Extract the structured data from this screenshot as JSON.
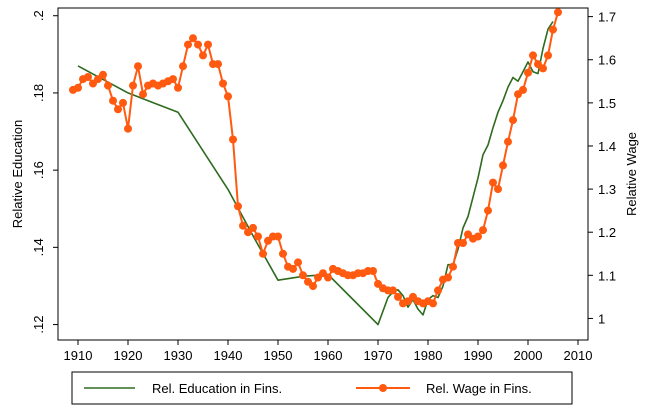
{
  "chart_data": {
    "type": "line",
    "title": "",
    "xlabel": "",
    "y_left_label": "Relative Education",
    "y_right_label": "Relative Wage",
    "xlim": [
      1906,
      2012
    ],
    "ylim_left": [
      0.116,
      0.202
    ],
    "ylim_right": [
      0.95,
      1.72
    ],
    "x_ticks": [
      1910,
      1920,
      1930,
      1940,
      1950,
      1960,
      1970,
      1980,
      1990,
      2000,
      2010
    ],
    "x_tick_labels": [
      "1910",
      "1920",
      "1930",
      "1940",
      "1950",
      "1960",
      "1970",
      "1980",
      "1990",
      "2000",
      "2010"
    ],
    "y_left_ticks": [
      0.12,
      0.14,
      0.16,
      0.18,
      0.2
    ],
    "y_left_tick_labels": [
      ".12",
      ".14",
      ".16",
      ".18",
      ".2"
    ],
    "y_right_ticks": [
      1,
      1.1,
      1.2,
      1.3,
      1.4,
      1.5,
      1.6,
      1.7
    ],
    "y_right_tick_labels": [
      "1",
      "1.1",
      "1.2",
      "1.3",
      "1.4",
      "1.5",
      "1.6",
      "1.7"
    ],
    "grid": false,
    "legend_position": "bottom",
    "series": [
      {
        "name": "Rel. Education in Fins.",
        "axis": "left",
        "color": "#2e6b1f",
        "marker": "none",
        "x": [
          1910,
          1915,
          1920,
          1925,
          1930,
          1935,
          1940,
          1945,
          1950,
          1955,
          1960,
          1965,
          1970,
          1972,
          1973,
          1974,
          1975,
          1976,
          1977,
          1978,
          1979,
          1980,
          1981,
          1982,
          1983,
          1984,
          1985,
          1986,
          1987,
          1988,
          1989,
          1990,
          1991,
          1992,
          1993,
          1994,
          1995,
          1996,
          1997,
          1998,
          1999,
          2000,
          2001,
          2002,
          2003,
          2004,
          2005
        ],
        "y": [
          0.187,
          0.1835,
          0.18,
          0.1775,
          0.175,
          0.165,
          0.155,
          0.143,
          0.1315,
          0.1325,
          0.133,
          0.1265,
          0.12,
          0.127,
          0.1285,
          0.129,
          0.1275,
          0.1245,
          0.1265,
          0.124,
          0.1225,
          0.1265,
          0.1275,
          0.127,
          0.13,
          0.1355,
          0.1355,
          0.1395,
          0.145,
          0.148,
          0.153,
          0.158,
          0.164,
          0.1665,
          0.171,
          0.175,
          0.178,
          0.1815,
          0.184,
          0.183,
          0.1855,
          0.188,
          0.1855,
          0.185,
          0.1915,
          0.1965,
          0.1985
        ]
      },
      {
        "name": "Rel. Wage in Fins.",
        "axis": "right",
        "color": "#ff5a10",
        "marker": "circle",
        "x": [
          1909,
          1910,
          1911,
          1912,
          1913,
          1914,
          1915,
          1916,
          1917,
          1918,
          1919,
          1920,
          1921,
          1922,
          1923,
          1924,
          1925,
          1926,
          1927,
          1928,
          1929,
          1930,
          1931,
          1932,
          1933,
          1934,
          1935,
          1936,
          1937,
          1938,
          1939,
          1940,
          1941,
          1942,
          1943,
          1944,
          1945,
          1946,
          1947,
          1948,
          1949,
          1950,
          1951,
          1952,
          1953,
          1954,
          1955,
          1956,
          1957,
          1958,
          1959,
          1960,
          1961,
          1962,
          1963,
          1964,
          1965,
          1966,
          1967,
          1968,
          1969,
          1970,
          1971,
          1972,
          1973,
          1974,
          1975,
          1976,
          1977,
          1978,
          1979,
          1980,
          1981,
          1982,
          1983,
          1984,
          1985,
          1986,
          1987,
          1988,
          1989,
          1990,
          1991,
          1992,
          1993,
          1994,
          1995,
          1996,
          1997,
          1998,
          1999,
          2000,
          2001,
          2002,
          2003,
          2004,
          2005,
          2006
        ],
        "y": [
          1.53,
          1.535,
          1.555,
          1.56,
          1.545,
          1.555,
          1.565,
          1.54,
          1.505,
          1.485,
          1.5,
          1.44,
          1.54,
          1.585,
          1.52,
          1.54,
          1.545,
          1.54,
          1.545,
          1.55,
          1.555,
          1.535,
          1.585,
          1.635,
          1.65,
          1.635,
          1.61,
          1.635,
          1.59,
          1.59,
          1.545,
          1.515,
          1.415,
          1.26,
          1.215,
          1.2,
          1.21,
          1.19,
          1.15,
          1.18,
          1.19,
          1.19,
          1.15,
          1.12,
          1.115,
          1.13,
          1.1,
          1.085,
          1.075,
          1.095,
          1.105,
          1.095,
          1.115,
          1.11,
          1.105,
          1.1,
          1.1,
          1.105,
          1.105,
          1.11,
          1.11,
          1.08,
          1.07,
          1.065,
          1.065,
          1.05,
          1.035,
          1.04,
          1.05,
          1.04,
          1.035,
          1.04,
          1.035,
          1.065,
          1.09,
          1.095,
          1.12,
          1.175,
          1.175,
          1.195,
          1.185,
          1.19,
          1.205,
          1.25,
          1.315,
          1.3,
          1.355,
          1.41,
          1.46,
          1.52,
          1.53,
          1.57,
          1.61,
          1.59,
          1.58,
          1.61,
          1.67,
          1.71
        ]
      }
    ]
  }
}
